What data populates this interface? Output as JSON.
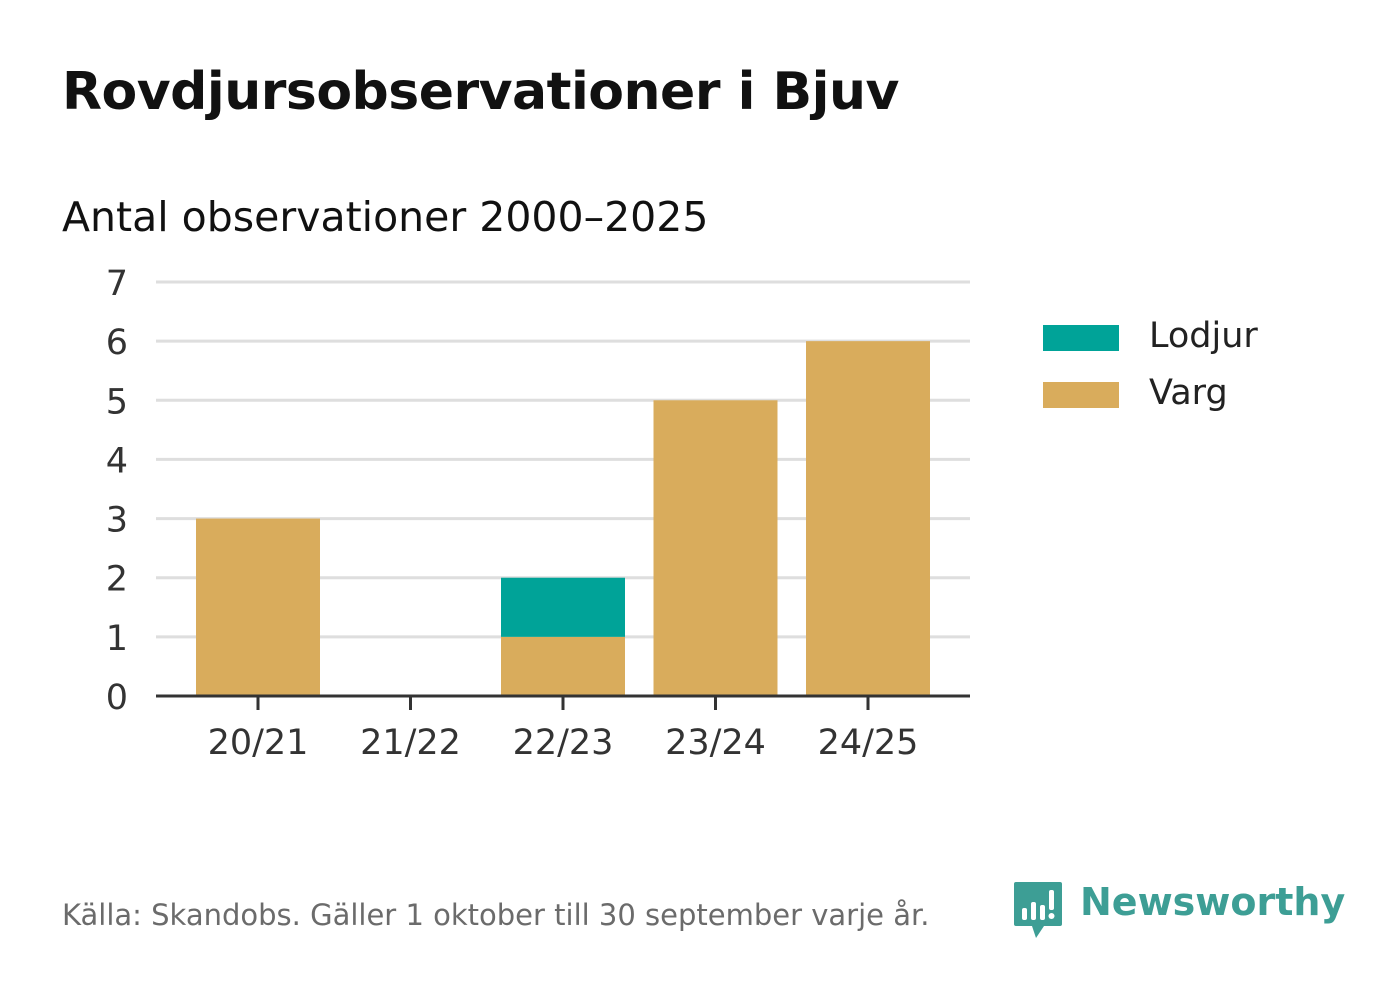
{
  "title": "Rovdjursobservationer i Bjuv",
  "subtitle": "Antal observationer 2000–2025",
  "footer": "Källa: Skandobs. Gäller 1 oktober till 30 september varje år.",
  "brand": {
    "name": "Newsworthy",
    "icon": "newsworthy-logo-icon",
    "color": "#3d9e95"
  },
  "chart_data": {
    "type": "bar",
    "stacked": true,
    "categories": [
      "20/21",
      "21/22",
      "22/23",
      "23/24",
      "24/25"
    ],
    "series": [
      {
        "name": "Varg",
        "color": "#d9ac5c",
        "values": [
          3,
          0,
          1,
          5,
          6
        ]
      },
      {
        "name": "Lodjur",
        "color": "#00a398",
        "values": [
          0,
          0,
          1,
          0,
          0
        ]
      }
    ],
    "legend_order": [
      "Lodjur",
      "Varg"
    ],
    "ylim": [
      0,
      7
    ],
    "yticks": [
      0,
      1,
      2,
      3,
      4,
      5,
      6,
      7
    ],
    "grid": true,
    "legend_position": "right"
  }
}
